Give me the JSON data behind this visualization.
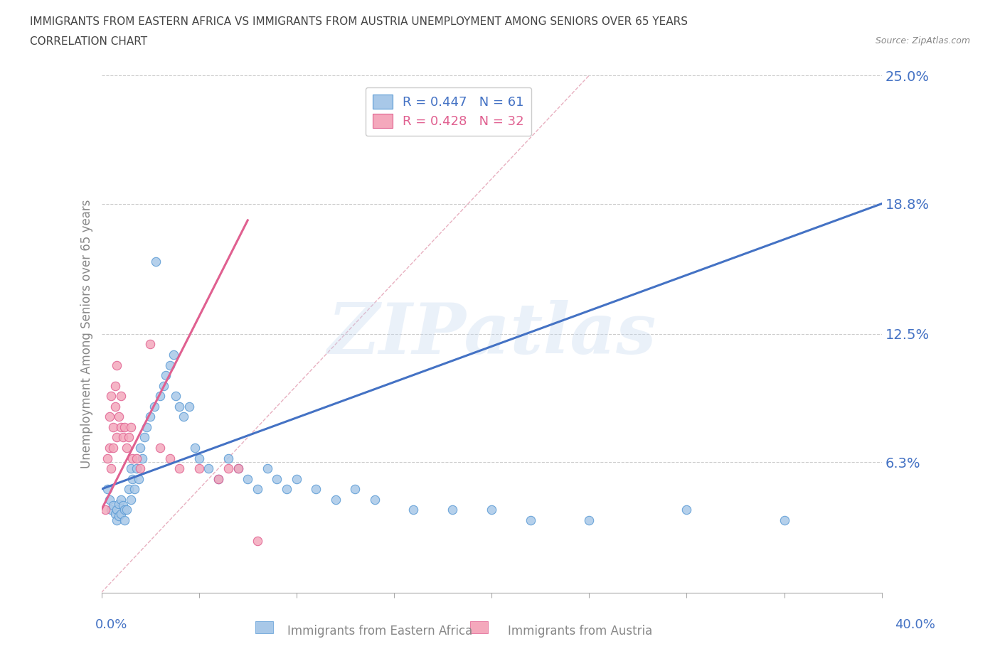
{
  "title_line1": "IMMIGRANTS FROM EASTERN AFRICA VS IMMIGRANTS FROM AUSTRIA UNEMPLOYMENT AMONG SENIORS OVER 65 YEARS",
  "title_line2": "CORRELATION CHART",
  "source": "Source: ZipAtlas.com",
  "ylabel": "Unemployment Among Seniors over 65 years",
  "xmin": 0.0,
  "xmax": 0.4,
  "ymin": 0.0,
  "ymax": 0.25,
  "ytick_vals": [
    0.063,
    0.125,
    0.188,
    0.25
  ],
  "ytick_labels": [
    "6.3%",
    "12.5%",
    "18.8%",
    "25.0%"
  ],
  "legend_r1": "R = 0.447",
  "legend_n1": "N = 61",
  "legend_r2": "R = 0.428",
  "legend_n2": "N = 32",
  "color_blue": "#a8c8e8",
  "color_pink": "#f4a8bc",
  "color_blue_edge": "#5b9bd5",
  "color_pink_edge": "#e06090",
  "color_blue_line": "#4472c4",
  "color_pink_line": "#e06090",
  "color_diag": "#cccccc",
  "watermark": "ZIPatlas",
  "blue_scatter_x": [
    0.003,
    0.004,
    0.005,
    0.006,
    0.007,
    0.008,
    0.008,
    0.009,
    0.009,
    0.01,
    0.01,
    0.011,
    0.012,
    0.012,
    0.013,
    0.014,
    0.015,
    0.015,
    0.016,
    0.017,
    0.018,
    0.019,
    0.02,
    0.021,
    0.022,
    0.023,
    0.025,
    0.027,
    0.028,
    0.03,
    0.032,
    0.033,
    0.035,
    0.037,
    0.038,
    0.04,
    0.042,
    0.045,
    0.048,
    0.05,
    0.055,
    0.06,
    0.065,
    0.07,
    0.075,
    0.08,
    0.085,
    0.09,
    0.095,
    0.1,
    0.11,
    0.12,
    0.13,
    0.14,
    0.16,
    0.18,
    0.2,
    0.22,
    0.25,
    0.3,
    0.35
  ],
  "blue_scatter_y": [
    0.05,
    0.045,
    0.04,
    0.042,
    0.038,
    0.04,
    0.035,
    0.043,
    0.037,
    0.045,
    0.038,
    0.042,
    0.04,
    0.035,
    0.04,
    0.05,
    0.045,
    0.06,
    0.055,
    0.05,
    0.06,
    0.055,
    0.07,
    0.065,
    0.075,
    0.08,
    0.085,
    0.09,
    0.16,
    0.095,
    0.1,
    0.105,
    0.11,
    0.115,
    0.095,
    0.09,
    0.085,
    0.09,
    0.07,
    0.065,
    0.06,
    0.055,
    0.065,
    0.06,
    0.055,
    0.05,
    0.06,
    0.055,
    0.05,
    0.055,
    0.05,
    0.045,
    0.05,
    0.045,
    0.04,
    0.04,
    0.04,
    0.035,
    0.035,
    0.04,
    0.035
  ],
  "pink_scatter_x": [
    0.002,
    0.003,
    0.004,
    0.004,
    0.005,
    0.005,
    0.006,
    0.006,
    0.007,
    0.007,
    0.008,
    0.008,
    0.009,
    0.01,
    0.01,
    0.011,
    0.012,
    0.013,
    0.014,
    0.015,
    0.016,
    0.018,
    0.02,
    0.025,
    0.03,
    0.035,
    0.04,
    0.05,
    0.06,
    0.065,
    0.07,
    0.08
  ],
  "pink_scatter_y": [
    0.04,
    0.065,
    0.07,
    0.085,
    0.06,
    0.095,
    0.07,
    0.08,
    0.09,
    0.1,
    0.075,
    0.11,
    0.085,
    0.08,
    0.095,
    0.075,
    0.08,
    0.07,
    0.075,
    0.08,
    0.065,
    0.065,
    0.06,
    0.12,
    0.07,
    0.065,
    0.06,
    0.06,
    0.055,
    0.06,
    0.06,
    0.025
  ],
  "blue_line_x": [
    0.0,
    0.4
  ],
  "blue_line_y": [
    0.05,
    0.188
  ],
  "pink_line_x": [
    0.0,
    0.075
  ],
  "pink_line_y": [
    0.04,
    0.18
  ],
  "diag_line_x": [
    0.0,
    0.25
  ],
  "diag_line_y": [
    0.0,
    0.25
  ]
}
